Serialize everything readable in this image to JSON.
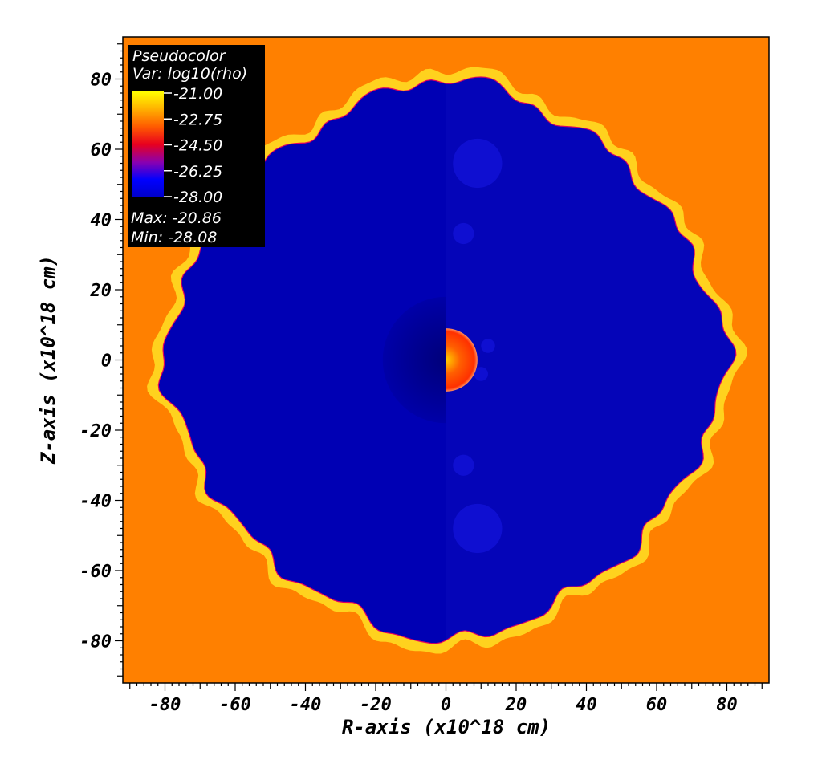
{
  "chart_data": {
    "type": "heatmap",
    "xlabel": "R-axis (x10^18 cm)",
    "ylabel": "Z-axis (x10^18 cm)",
    "xlim": [
      -92,
      92
    ],
    "ylim": [
      -92,
      92
    ],
    "x_ticks": [
      -80,
      -60,
      -40,
      -20,
      0,
      20,
      40,
      60,
      80
    ],
    "y_ticks": [
      80,
      60,
      40,
      20,
      0,
      -20,
      -40,
      -60,
      -80
    ],
    "colormap": [
      "#0000c8",
      "#0000ff",
      "#8b00b0",
      "#e8001e",
      "#ff5a00",
      "#ffb000",
      "#ffff00"
    ],
    "background_color": "#ff8000",
    "interior_color": "#0000b4",
    "shell_color": "#ffd21e",
    "legend": {
      "title": "Pseudocolor",
      "variable": "Var: log10(rho)",
      "levels": [
        "-21.00",
        "-22.75",
        "-24.50",
        "-26.25",
        "-28.00"
      ],
      "max_label": "Max: -20.86",
      "min_label": "Min: -28.08"
    },
    "features": {
      "outer_shell_radius": 84,
      "inner_core_radius": 9,
      "inner_core_color": "#ff5000",
      "left_dark_region_radius": 18
    }
  }
}
